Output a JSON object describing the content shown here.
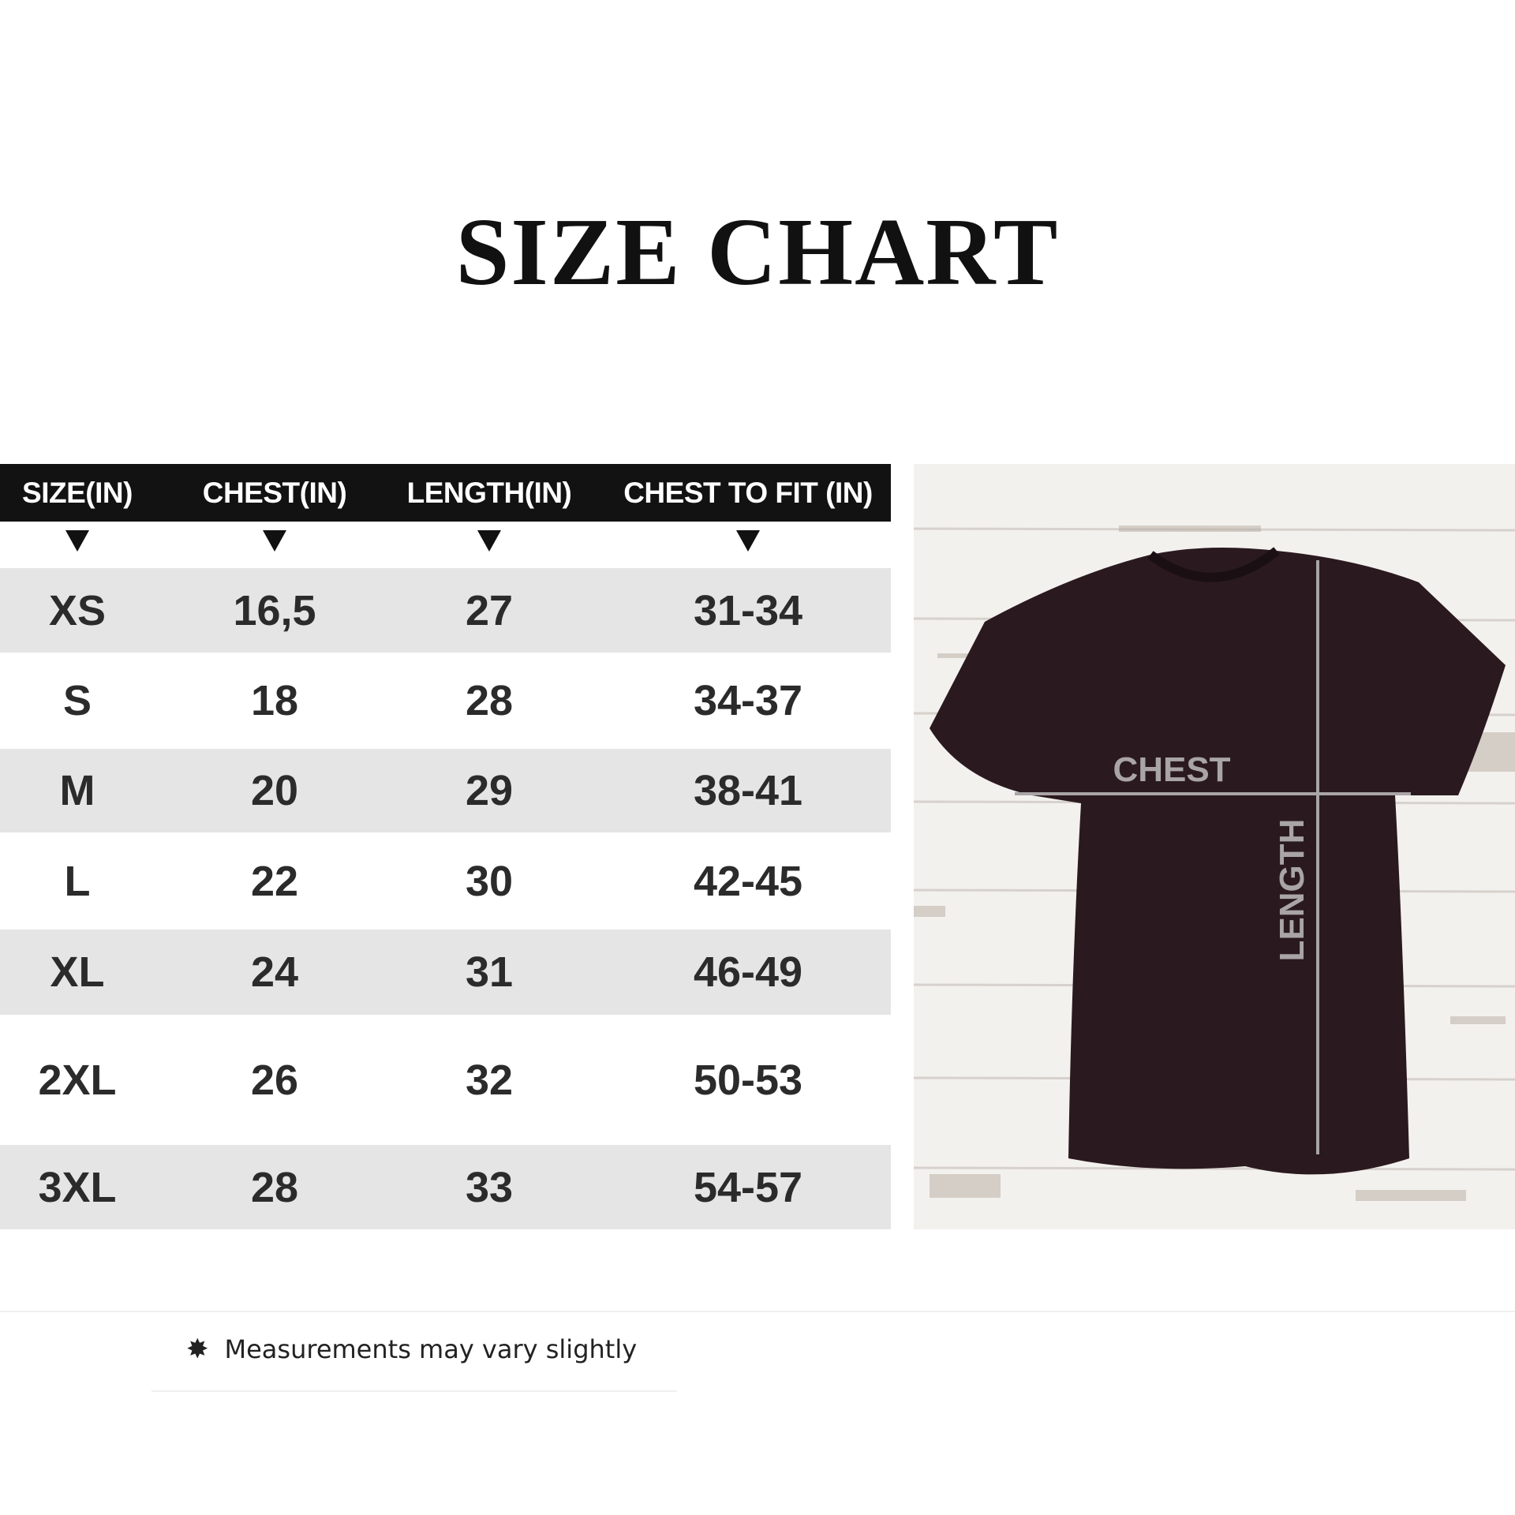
{
  "title": "SIZE CHART",
  "table": {
    "headers": [
      "SIZE(IN)",
      "CHEST(IN)",
      "LENGTH(IN)",
      "CHEST TO FIT (IN)"
    ],
    "rows": [
      [
        "XS",
        "16,5",
        "27",
        "31-34"
      ],
      [
        "S",
        "18",
        "28",
        "34-37"
      ],
      [
        "M",
        "20",
        "29",
        "38-41"
      ],
      [
        "L",
        "22",
        "30",
        "42-45"
      ],
      [
        "XL",
        "24",
        "31",
        "46-49"
      ],
      [
        "2XL",
        "26",
        "32",
        "50-53"
      ],
      [
        "3XL",
        "28",
        "33",
        "54-57"
      ]
    ]
  },
  "diagram": {
    "chest_label": "CHEST",
    "length_label": "LENGTH",
    "shirt_color": "#2a1a1f",
    "line_color": "#a9a4a6"
  },
  "note": {
    "icon": "asterisk-star-icon",
    "text": "Measurements may vary slightly"
  }
}
